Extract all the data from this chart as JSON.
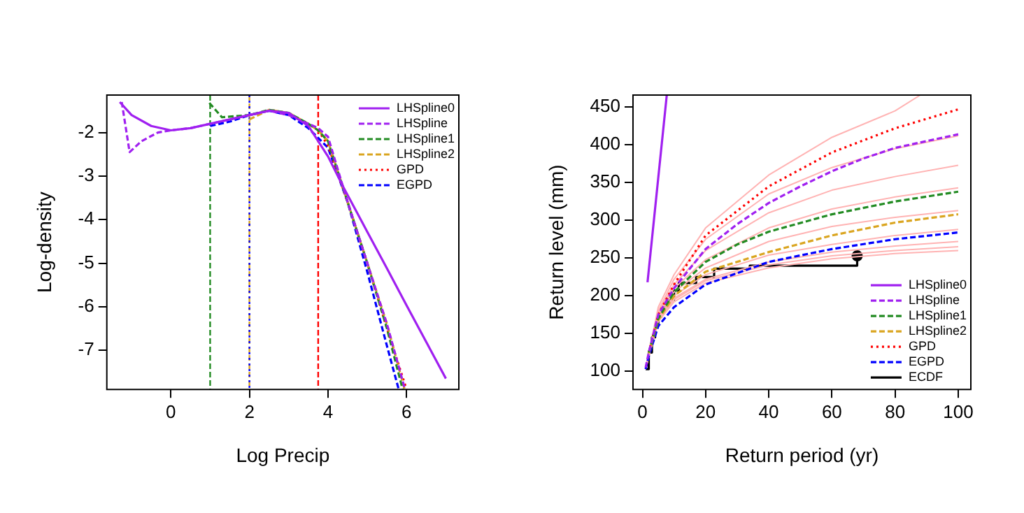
{
  "chart_data": [
    {
      "type": "line",
      "xlabel": "Log Precip",
      "ylabel": "Log-density",
      "xlim": [
        -1.63,
        7.33
      ],
      "ylim": [
        -7.9,
        -1.14
      ],
      "xticks": [
        0,
        2,
        4,
        6
      ],
      "yticks": [
        -2,
        -3,
        -4,
        -5,
        -6,
        -7
      ],
      "legend": "top right",
      "marker": "none",
      "series": [
        {
          "name": "LHSpline0",
          "color": "#a020f0",
          "line_style": "solid",
          "x": [
            -1.3,
            -1,
            -0.5,
            0,
            0.5,
            1,
            1.5,
            2,
            2.5,
            3,
            3.5,
            4,
            4.4,
            5,
            5.5,
            6,
            6.5,
            7
          ],
          "values": [
            -1.3,
            -1.6,
            -1.85,
            -1.95,
            -1.9,
            -1.8,
            -1.7,
            -1.6,
            -1.5,
            -1.55,
            -1.85,
            -2.55,
            -3.27,
            -4.28,
            -5.12,
            -5.97,
            -6.81,
            -7.65
          ]
        },
        {
          "name": "LHSpline",
          "color": "#a020f0",
          "line_style": "dashed",
          "x": [
            -1.25,
            -1.05,
            -0.75,
            -0.33,
            0,
            0.5,
            1,
            1.5,
            2,
            2.5,
            3,
            3.5,
            3.75,
            4,
            4.5,
            5,
            5.5,
            5.96
          ],
          "values": [
            -1.3,
            -2.45,
            -2.2,
            -2.0,
            -1.95,
            -1.9,
            -1.8,
            -1.7,
            -1.6,
            -1.5,
            -1.6,
            -1.8,
            -1.9,
            -2.1,
            -3.6,
            -5.0,
            -6.4,
            -7.9
          ]
        },
        {
          "name": "LHSpline1",
          "color": "#228b22",
          "line_style": "dashed",
          "x": [
            0.98,
            1.3,
            2,
            2.5,
            3,
            3.5,
            3.75,
            4,
            4.5,
            5,
            5.5,
            5.9
          ],
          "values": [
            -1.32,
            -1.65,
            -1.6,
            -1.48,
            -1.55,
            -1.8,
            -1.95,
            -2.2,
            -3.6,
            -5.0,
            -6.5,
            -7.9
          ]
        },
        {
          "name": "LHSpline2",
          "color": "#daa520",
          "line_style": "dashed",
          "x": [
            2,
            2.5,
            3,
            3.5,
            3.75,
            4,
            4.5,
            5,
            5.5,
            5.95
          ],
          "values": [
            -1.7,
            -1.48,
            -1.55,
            -1.8,
            -1.95,
            -2.2,
            -3.6,
            -5.0,
            -6.4,
            -7.9
          ]
        },
        {
          "name": "GPD",
          "color": "#ff0000",
          "line_style": "dotted",
          "x": [
            3.75,
            4,
            4.5,
            5,
            5.5,
            6.0
          ],
          "values": [
            -1.95,
            -2.3,
            -3.6,
            -5.0,
            -6.5,
            -7.9
          ]
        },
        {
          "name": "EGPD",
          "color": "#0000ff",
          "line_style": "dashed",
          "x": [
            1,
            1.5,
            2,
            2.5,
            3,
            3.5,
            4,
            4.5,
            5,
            5.5,
            5.8
          ],
          "values": [
            -1.85,
            -1.75,
            -1.6,
            -1.5,
            -1.6,
            -1.9,
            -2.35,
            -3.6,
            -5.2,
            -6.9,
            -7.9
          ]
        }
      ],
      "ref_lines": [
        {
          "axis": "x",
          "value": 1,
          "color": "#228b22",
          "line_style": "dashed"
        },
        {
          "axis": "x",
          "value": 2,
          "color": "#daa520",
          "line_style": "dashed"
        },
        {
          "axis": "x",
          "value": 2,
          "color": "#0000ff",
          "line_style": "dotted"
        },
        {
          "axis": "x",
          "value": 3.75,
          "color": "#ff0000",
          "line_style": "dashed"
        }
      ]
    },
    {
      "type": "line",
      "xlabel": "Return period (yr)",
      "ylabel": "Return level (mm)",
      "xlim": [
        -3,
        104
      ],
      "ylim": [
        76,
        466
      ],
      "xticks": [
        0,
        20,
        40,
        60,
        80,
        100
      ],
      "yticks": [
        100,
        150,
        200,
        250,
        300,
        350,
        400,
        450
      ],
      "legend": "bottom right",
      "marker": "none",
      "series": [
        {
          "color": "#ffb3b3",
          "line_style": "solid",
          "x": [
            1,
            5,
            10,
            20,
            40,
            60,
            80,
            88
          ],
          "values": [
            103,
            185,
            228,
            290,
            360,
            410,
            445,
            466
          ]
        },
        {
          "color": "#ffb3b3",
          "line_style": "solid",
          "x": [
            1,
            5,
            10,
            20,
            40,
            60,
            80,
            100
          ],
          "values": [
            103,
            180,
            222,
            275,
            335,
            370,
            395,
            412
          ]
        },
        {
          "color": "#ffb3b3",
          "line_style": "solid",
          "x": [
            1,
            5,
            10,
            20,
            40,
            60,
            80,
            100
          ],
          "values": [
            103,
            178,
            215,
            260,
            310,
            340,
            358,
            373
          ]
        },
        {
          "color": "#ffb3b3",
          "line_style": "solid",
          "x": [
            1,
            5,
            10,
            20,
            40,
            60,
            80,
            100
          ],
          "values": [
            103,
            176,
            210,
            248,
            290,
            315,
            331,
            343
          ]
        },
        {
          "color": "#ffb3b3",
          "line_style": "solid",
          "x": [
            1,
            5,
            10,
            20,
            40,
            60,
            80,
            100
          ],
          "values": [
            103,
            174,
            205,
            237,
            272,
            292,
            304,
            313
          ]
        },
        {
          "color": "#ffb3b3",
          "line_style": "solid",
          "x": [
            1,
            5,
            10,
            20,
            40,
            60,
            80,
            100
          ],
          "values": [
            103,
            172,
            200,
            228,
            254,
            268,
            280,
            288
          ]
        },
        {
          "color": "#ffb3b3",
          "line_style": "solid",
          "x": [
            1,
            5,
            10,
            20,
            40,
            60,
            80,
            100
          ],
          "values": [
            103,
            170,
            197,
            222,
            245,
            258,
            266,
            272
          ]
        },
        {
          "color": "#ffb3b3",
          "line_style": "solid",
          "x": [
            1,
            5,
            10,
            20,
            40,
            60,
            80,
            100
          ],
          "values": [
            103,
            168,
            195,
            220,
            241,
            253,
            260,
            265
          ]
        },
        {
          "color": "#ffb3b3",
          "line_style": "solid",
          "x": [
            1,
            5,
            10,
            20,
            40,
            60,
            80,
            100
          ],
          "values": [
            103,
            166,
            192,
            217,
            237,
            249,
            256,
            260
          ]
        },
        {
          "name": "LHSpline0",
          "color": "#a020f0",
          "line_style": "solid",
          "x": [
            1.6,
            7.7
          ],
          "values": [
            218,
            466
          ]
        },
        {
          "name": "LHSpline",
          "color": "#a020f0",
          "line_style": "dashed",
          "x": [
            1,
            2,
            5,
            10,
            20,
            30,
            40,
            50,
            60,
            70,
            80,
            90,
            100
          ],
          "values": [
            105,
            125,
            175,
            210,
            262,
            295,
            323,
            345,
            365,
            382,
            396,
            405,
            414
          ]
        },
        {
          "name": "LHSpline1",
          "color": "#228b22",
          "line_style": "dashed",
          "x": [
            2,
            5,
            10,
            20,
            30,
            40,
            60,
            80,
            100
          ],
          "values": [
            125,
            170,
            205,
            245,
            268,
            285,
            308,
            325,
            338
          ]
        },
        {
          "name": "LHSpline2",
          "color": "#daa520",
          "line_style": "dashed",
          "x": [
            2,
            5,
            10,
            20,
            40,
            60,
            80,
            100
          ],
          "values": [
            124,
            168,
            200,
            232,
            258,
            280,
            297,
            308
          ]
        },
        {
          "name": "GPD",
          "color": "#ff0000",
          "line_style": "dotted",
          "x": [
            2,
            5,
            10,
            20,
            40,
            60,
            80,
            100
          ],
          "values": [
            125,
            175,
            215,
            280,
            345,
            390,
            422,
            447
          ]
        },
        {
          "name": "EGPD",
          "color": "#0000ff",
          "line_style": "dashed",
          "x": [
            1,
            2,
            5,
            10,
            20,
            40,
            60,
            80,
            100
          ],
          "values": [
            103,
            120,
            160,
            185,
            215,
            245,
            262,
            275,
            284
          ]
        },
        {
          "name": "ECDF",
          "type": "step",
          "color": "#000000",
          "line_style": "solid",
          "x": [
            1,
            2,
            3,
            4,
            5,
            6,
            7,
            8,
            10,
            11.5,
            17,
            22.7,
            34,
            68
          ],
          "values": [
            103,
            125,
            145,
            160,
            172,
            180,
            185,
            195,
            207,
            217,
            225,
            236,
            240,
            253
          ]
        },
        {
          "type": "scatter",
          "color": "#000000",
          "marker": "circle",
          "x": [
            68
          ],
          "values": [
            253
          ]
        }
      ]
    }
  ]
}
